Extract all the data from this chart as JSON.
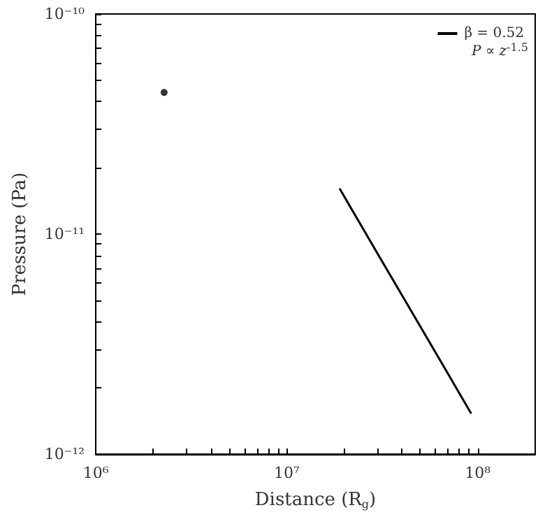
{
  "chart_data": {
    "type": "line",
    "xlabel": "Distance (R$_{g}$)",
    "ylabel": "Pressure (Pa)",
    "annotations": [
      "P ∝ z$^{-1.5}$"
    ],
    "series": [
      {
        "name": "β = 0.52",
        "color": "#000000",
        "x": [
          19000000.0,
          30000000.0,
          45000000.0,
          65000000.0,
          92000000.0
        ],
        "values": [
          1.6e-11,
          8.1e-12,
          4.45e-12,
          2.58e-12,
          1.54e-12
        ]
      },
      {
        "type": "scatter",
        "color": "#000000",
        "marker": "circle",
        "x": [
          2280000.0
        ],
        "values": [
          4.4e-11
        ]
      }
    ],
    "log": "xy",
    "xlim": [
      1000000.0,
      200000000.0
    ],
    "ylim": [
      1e-12,
      1e-10
    ],
    "xticks": [
      {
        "value": 1000000.0,
        "label": "10⁶"
      },
      {
        "value": 2000000.0,
        "label": null
      },
      {
        "value": 3000000.0,
        "label": null
      },
      {
        "value": 4000000.0,
        "label": null
      },
      {
        "value": 5000000.0,
        "label": null
      },
      {
        "value": 6000000.0,
        "label": null
      },
      {
        "value": 7000000.0,
        "label": null
      },
      {
        "value": 8000000.0,
        "label": null
      },
      {
        "value": 9000000.0,
        "label": null
      },
      {
        "value": 10000000.0,
        "label": "10⁷"
      },
      {
        "value": 20000000.0,
        "label": null
      },
      {
        "value": 30000000.0,
        "label": null
      },
      {
        "value": 40000000.0,
        "label": null
      },
      {
        "value": 50000000.0,
        "label": null
      },
      {
        "value": 60000000.0,
        "label": null
      },
      {
        "value": 70000000.0,
        "label": null
      },
      {
        "value": 80000000.0,
        "label": null
      },
      {
        "value": 90000000.0,
        "label": null
      },
      {
        "value": 100000000.0,
        "label": "10⁸"
      }
    ],
    "yticks": [
      {
        "value": 1e-12,
        "label": "10⁻¹²"
      },
      {
        "value": 2e-12,
        "label": null
      },
      {
        "value": 3e-12,
        "label": null
      },
      {
        "value": 4e-12,
        "label": null
      },
      {
        "value": 5e-12,
        "label": null
      },
      {
        "value": 6e-12,
        "label": null
      },
      {
        "value": 7e-12,
        "label": null
      },
      {
        "value": 8e-12,
        "label": null
      },
      {
        "value": 9e-12,
        "label": null
      },
      {
        "value": 1e-11,
        "label": "10⁻¹¹"
      },
      {
        "value": 2e-11,
        "label": null
      },
      {
        "value": 3e-11,
        "label": null
      },
      {
        "value": 4e-11,
        "label": null
      },
      {
        "value": 5e-11,
        "label": null
      },
      {
        "value": 6e-11,
        "label": null
      },
      {
        "value": 7e-11,
        "label": null
      },
      {
        "value": 8e-11,
        "label": null
      },
      {
        "value": 9e-11,
        "label": null
      },
      {
        "value": 1e-10,
        "label": "10⁻¹⁰"
      }
    ],
    "grid": false,
    "legend": "top right",
    "line_style": "solid"
  }
}
